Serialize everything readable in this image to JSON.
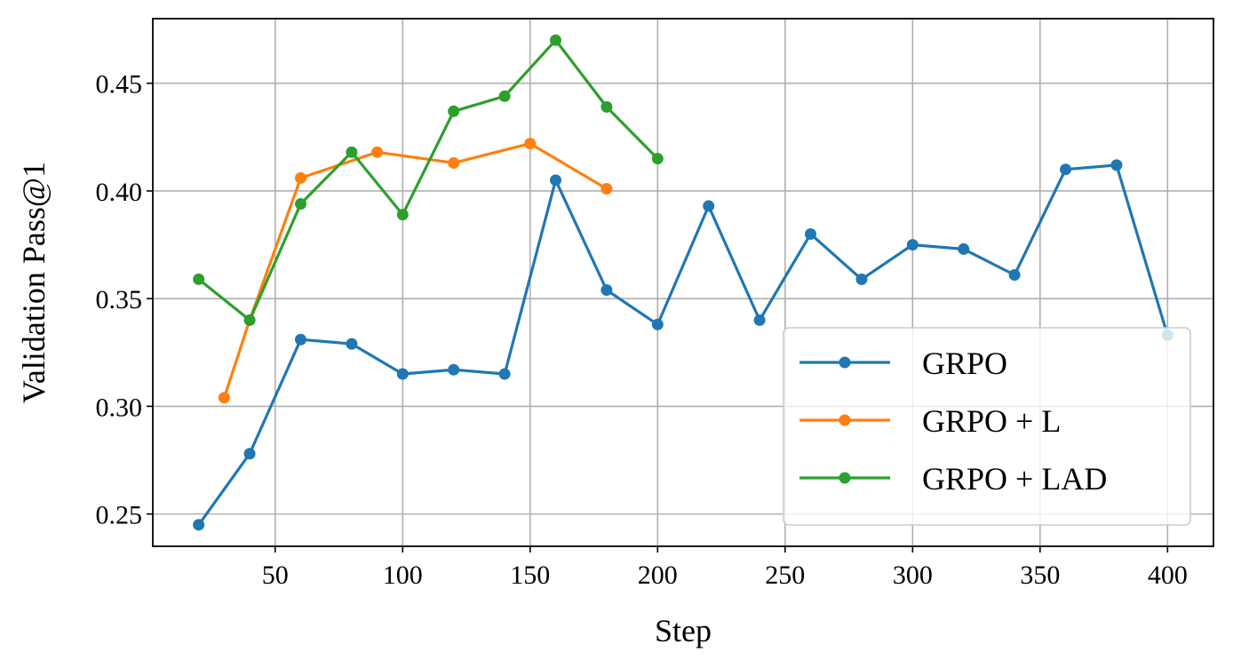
{
  "chart_data": {
    "type": "line",
    "xlabel": "Step",
    "ylabel": "Validation Pass@1",
    "xlim": [
      2,
      418
    ],
    "ylim": [
      0.235,
      0.48
    ],
    "xticks": [
      50,
      100,
      150,
      200,
      250,
      300,
      350,
      400
    ],
    "yticks": [
      0.25,
      0.3,
      0.35,
      0.4,
      0.45
    ],
    "xtick_labels": [
      "50",
      "100",
      "150",
      "200",
      "250",
      "300",
      "350",
      "400"
    ],
    "ytick_labels": [
      "0.25",
      "0.30",
      "0.35",
      "0.40",
      "0.45"
    ],
    "grid": true,
    "legend_position": "lower-right",
    "series": [
      {
        "name": "GRPO",
        "color": "#1f77b4",
        "x": [
          20,
          40,
          60,
          80,
          100,
          120,
          140,
          160,
          180,
          200,
          220,
          240,
          260,
          280,
          300,
          320,
          340,
          360,
          380,
          400
        ],
        "y": [
          0.245,
          0.278,
          0.331,
          0.329,
          0.315,
          0.317,
          0.315,
          0.405,
          0.354,
          0.338,
          0.393,
          0.34,
          0.38,
          0.359,
          0.375,
          0.373,
          0.361,
          0.41,
          0.412,
          0.333
        ]
      },
      {
        "name": "GRPO + L",
        "color": "#ff7f0e",
        "x": [
          30,
          40,
          60,
          90,
          120,
          150,
          180
        ],
        "y": [
          0.304,
          0.34,
          0.406,
          0.418,
          0.413,
          0.422,
          0.401
        ]
      },
      {
        "name": "GRPO + LAD",
        "color": "#2ca02c",
        "x": [
          20,
          40,
          60,
          80,
          100,
          120,
          140,
          160,
          180,
          200
        ],
        "y": [
          0.359,
          0.34,
          0.394,
          0.418,
          0.389,
          0.437,
          0.444,
          0.47,
          0.439,
          0.415
        ]
      }
    ]
  }
}
